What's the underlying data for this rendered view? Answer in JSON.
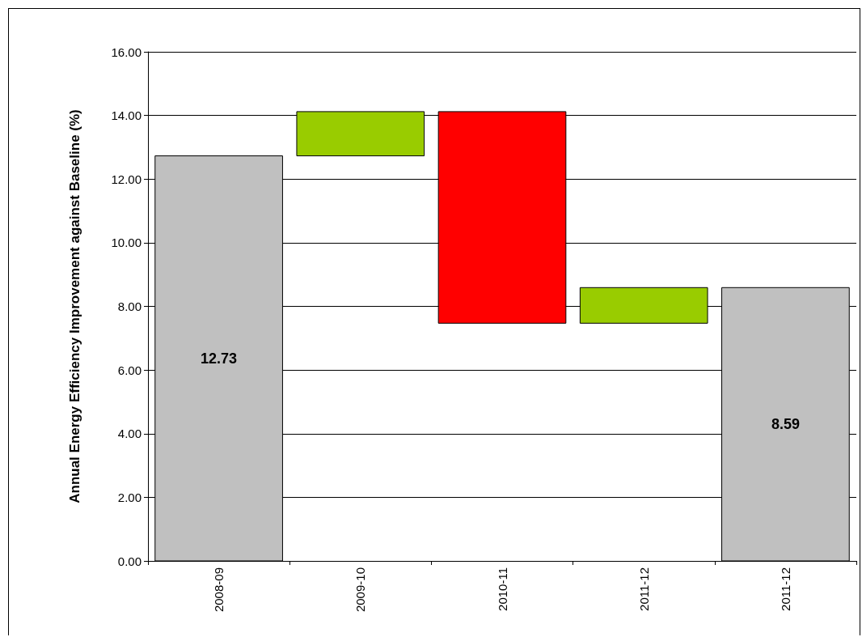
{
  "chart_data": {
    "type": "bar",
    "ylabel": "Annual Energy Efficiency Improvement against Baseline (%)",
    "categories": [
      "2008-09",
      "2009-10",
      "2010-11",
      "2011-12",
      "2011-12"
    ],
    "values": [
      12.73,
      1.39,
      6.65,
      1.12,
      8.59
    ],
    "base": [
      0,
      12.73,
      7.47,
      7.47,
      0
    ],
    "colors": [
      "#c0c0c0",
      "#99cc00",
      "#ff0000",
      "#99cc00",
      "#c0c0c0"
    ],
    "value_labels": [
      "12.73",
      null,
      null,
      null,
      "8.59"
    ],
    "ylim": [
      0,
      16
    ],
    "yticks": [
      {
        "value": 0,
        "label": "0.00"
      },
      {
        "value": 2,
        "label": "2.00"
      },
      {
        "value": 4,
        "label": "4.00"
      },
      {
        "value": 6,
        "label": "6.00"
      },
      {
        "value": 8,
        "label": "8.00"
      },
      {
        "value": 10,
        "label": "10.00"
      },
      {
        "value": 12,
        "label": "12.00"
      },
      {
        "value": 14,
        "label": "14.00"
      },
      {
        "value": 16,
        "label": "16.00"
      }
    ],
    "grid": "y"
  }
}
